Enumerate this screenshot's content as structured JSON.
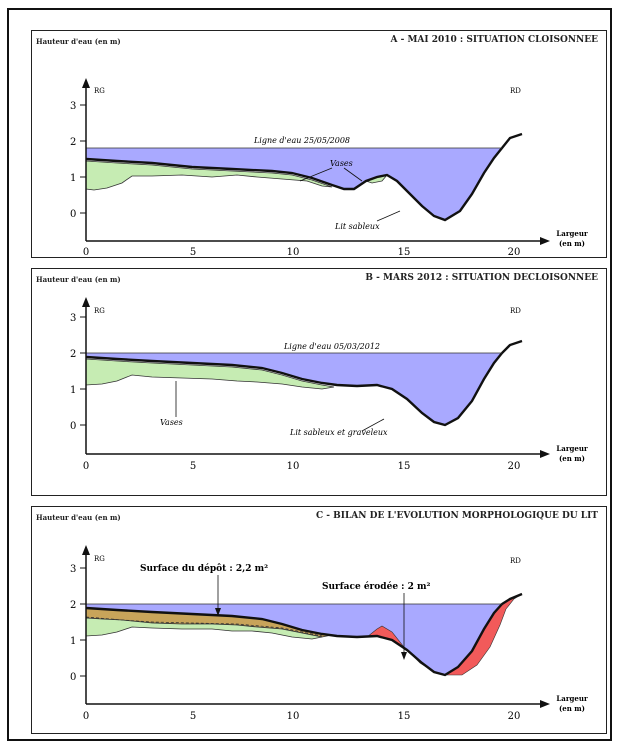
{
  "y_axis_label": "Hauteur d'eau (en m)",
  "left_bank": "RG",
  "right_bank": "RD",
  "x_axis_label_line1": "Largeur",
  "x_axis_label_line2": "(en m)",
  "x_ticks": [
    "0",
    "5",
    "10",
    "15",
    "20"
  ],
  "y_ticks": [
    "0",
    "1",
    "2",
    "3"
  ],
  "colors": {
    "water": "#a9a9ff",
    "silt": "#c6ecb3",
    "deposit": "#c8a45a",
    "erosion": "#f25a5a",
    "bed": "#111111"
  },
  "panels": [
    {
      "title": "A - MAI 2010 : SITUATION  CLOISONNEE",
      "water_line_label": "Ligne d'eau 25/05/2008",
      "annotations": [
        "Vases",
        "Lit sableux"
      ]
    },
    {
      "title": "B - MARS 2012 : SITUATION DECLOISONNEE",
      "water_line_label": "Ligne d'eau 05/03/2012",
      "annotations": [
        "Vases",
        "Lit sableux et graveleux"
      ]
    },
    {
      "title": "C - BILAN DE L'EVOLUTION MORPHOLOGIQUE DU LIT",
      "deposit_label": "Surface du dépôt : 2,2 m²",
      "erosion_label": "Surface érodée : 2 m²"
    }
  ]
}
